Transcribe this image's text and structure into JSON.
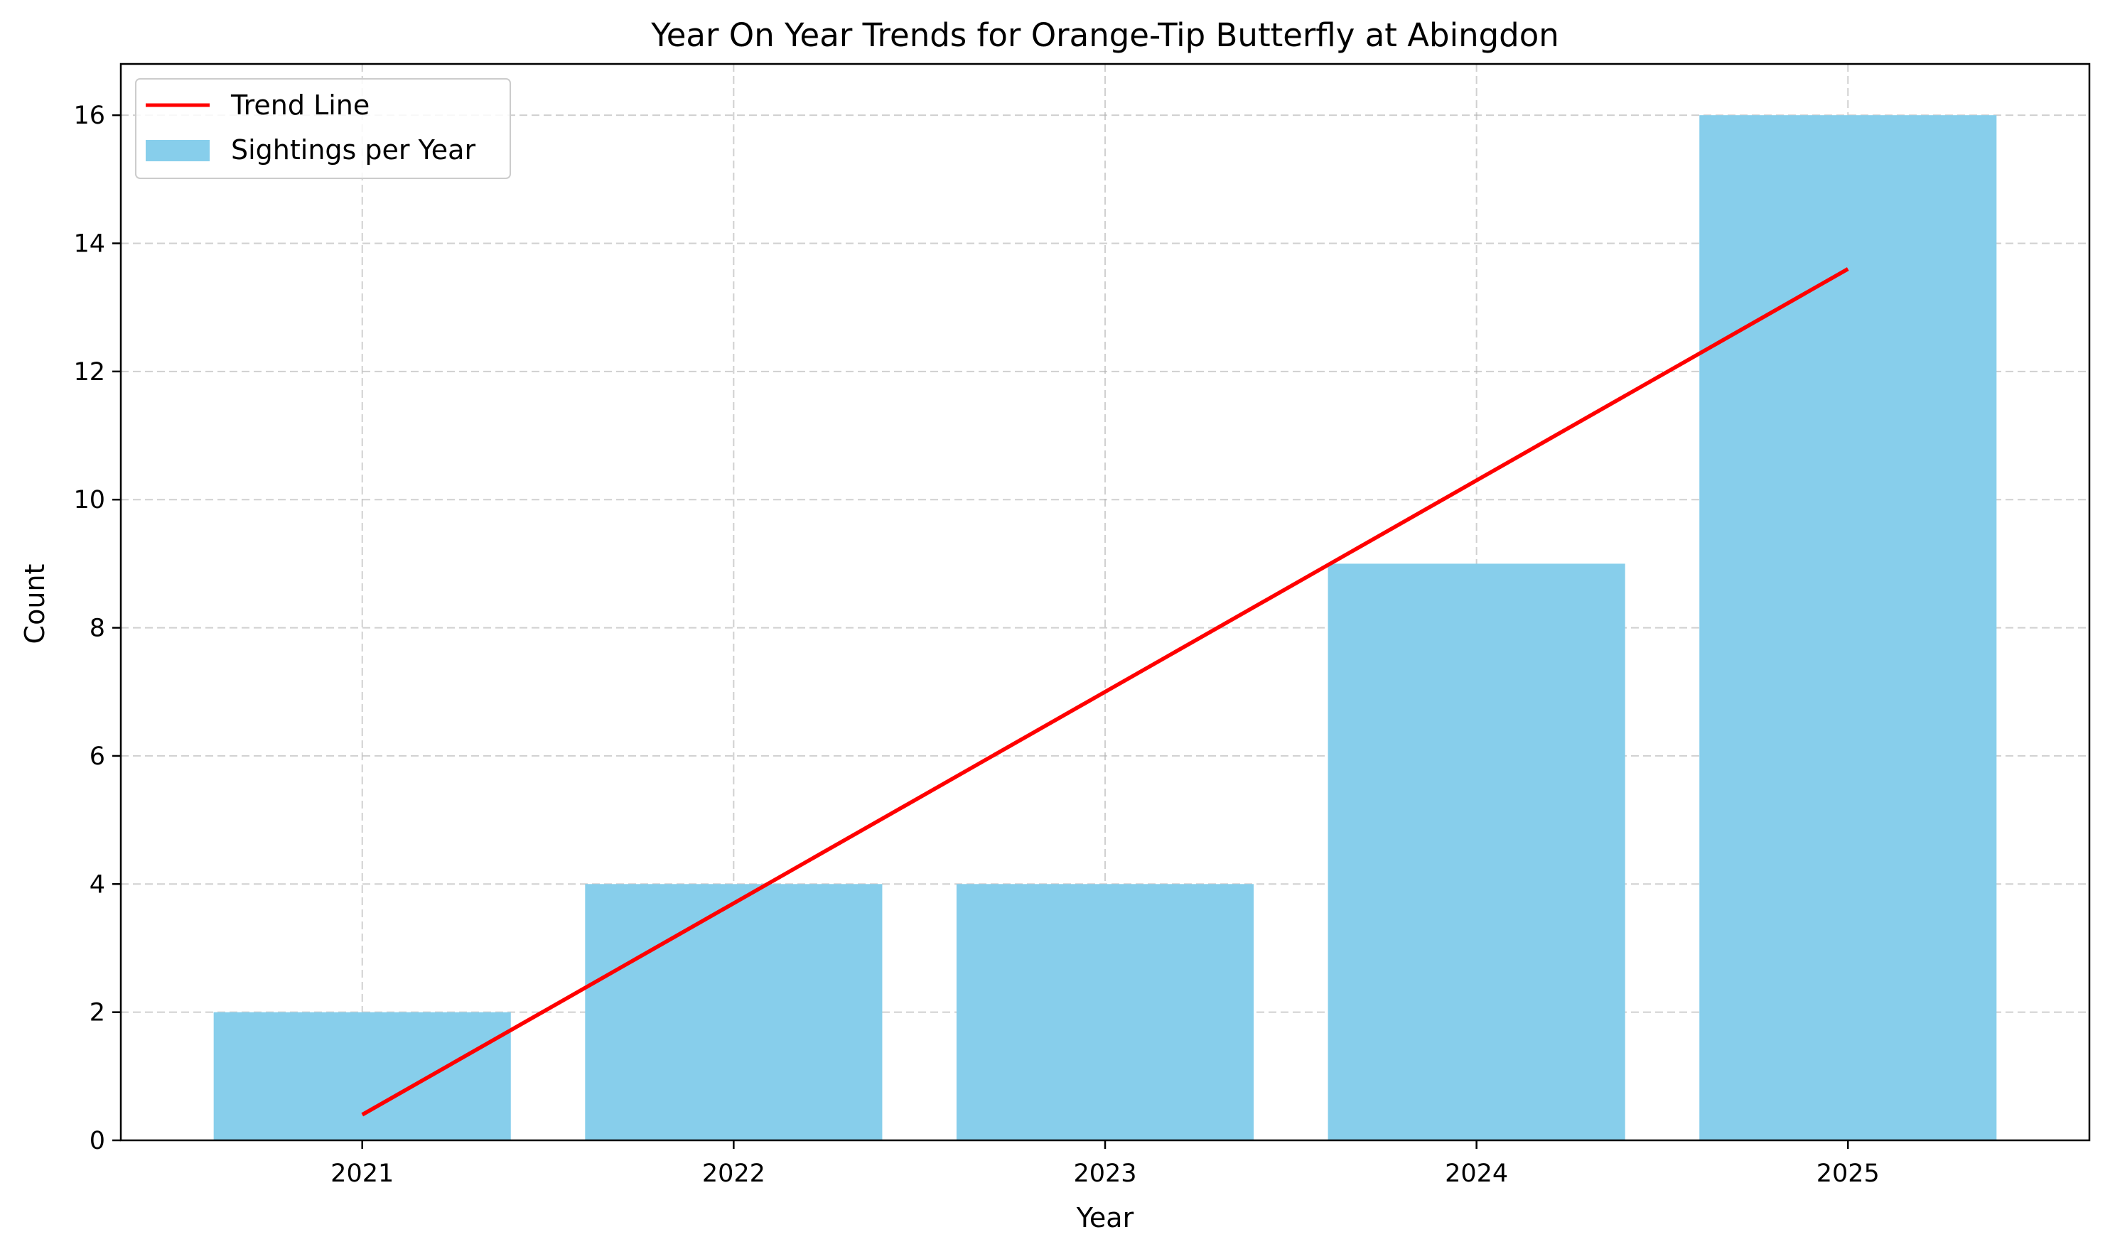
{
  "chart_data": {
    "type": "bar",
    "title": "Year On Year Trends for Orange-Tip Butterfly at Abingdon",
    "xlabel": "Year",
    "ylabel": "Count",
    "categories": [
      "2021",
      "2022",
      "2023",
      "2024",
      "2025"
    ],
    "series": [
      {
        "name": "Sightings per Year",
        "type": "bar",
        "values": [
          2,
          4,
          4,
          9,
          16
        ],
        "color": "#87CEEB"
      },
      {
        "name": "Trend Line",
        "type": "line",
        "values": [
          0.4,
          3.7,
          7.0,
          10.3,
          13.6
        ],
        "color": "#FF0000"
      }
    ],
    "ylim": [
      0,
      16.8
    ],
    "yticks": [
      0,
      2,
      4,
      6,
      8,
      10,
      12,
      14,
      16
    ],
    "grid": true,
    "legend_position": "top-left"
  }
}
